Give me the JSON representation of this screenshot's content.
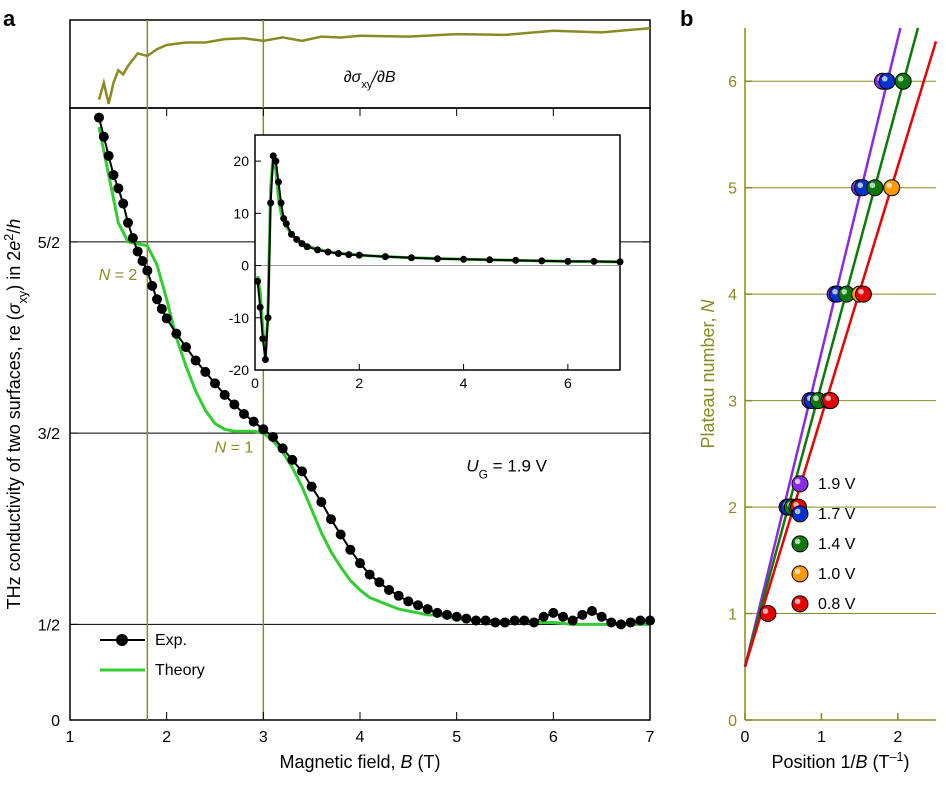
{
  "panelA": {
    "label": "a",
    "axes": {
      "x_label": "Magnetic field, B (T)",
      "y_label": "THz conductivity of two surfaces, re (σ_xy) in 2e²/h",
      "xlim": [
        1,
        7
      ],
      "ylim": [
        0,
        3.2
      ],
      "xticks": [
        1,
        2,
        3,
        4,
        5,
        6,
        7
      ],
      "ytick_positions": [
        0,
        0.5,
        1.5,
        2.5
      ],
      "ytick_labels": [
        "0",
        "1/2",
        "3/2",
        "5/2"
      ],
      "label_fontsize": 18,
      "tick_fontsize": 16,
      "axis_color": "#000000",
      "grid_color": "#000000"
    },
    "hlines": [
      0.5,
      1.5,
      2.5
    ],
    "vlines_olive": [
      1.8,
      3.0
    ],
    "olive_color": "#8a8a24",
    "N_labels": [
      {
        "text": "N = 2",
        "B": 1.8,
        "sigma": 2.3
      },
      {
        "text": "N = 1",
        "B": 3.0,
        "sigma": 1.4
      }
    ],
    "UG_label": {
      "text": "U_G = 1.9 V",
      "B": 5.1,
      "sigma": 1.3
    },
    "legend": {
      "items": [
        {
          "label": "Exp.",
          "color": "#000000",
          "marker": true
        },
        {
          "label": "Theory",
          "color": "#33cc33",
          "marker": false
        }
      ],
      "fontsize": 16
    },
    "exp": {
      "color": "#000000",
      "marker_radius": 5,
      "B": [
        1.3,
        1.35,
        1.4,
        1.45,
        1.5,
        1.55,
        1.6,
        1.65,
        1.7,
        1.75,
        1.8,
        1.85,
        1.9,
        1.95,
        2.0,
        2.1,
        2.2,
        2.3,
        2.4,
        2.5,
        2.6,
        2.7,
        2.8,
        2.9,
        3.0,
        3.1,
        3.2,
        3.3,
        3.4,
        3.5,
        3.6,
        3.7,
        3.8,
        3.9,
        4.0,
        4.1,
        4.2,
        4.3,
        4.4,
        4.5,
        4.6,
        4.7,
        4.8,
        4.9,
        5.0,
        5.1,
        5.2,
        5.3,
        5.4,
        5.5,
        5.6,
        5.7,
        5.8,
        5.9,
        6.0,
        6.1,
        6.2,
        6.3,
        6.4,
        6.5,
        6.6,
        6.7,
        6.8,
        6.9,
        7.0
      ],
      "sigma": [
        3.15,
        3.05,
        2.95,
        2.85,
        2.78,
        2.7,
        2.6,
        2.52,
        2.45,
        2.4,
        2.35,
        2.27,
        2.2,
        2.15,
        2.1,
        2.02,
        1.95,
        1.88,
        1.82,
        1.76,
        1.7,
        1.65,
        1.6,
        1.56,
        1.52,
        1.48,
        1.42,
        1.36,
        1.3,
        1.22,
        1.14,
        1.05,
        0.97,
        0.89,
        0.82,
        0.76,
        0.72,
        0.68,
        0.65,
        0.62,
        0.6,
        0.58,
        0.56,
        0.55,
        0.54,
        0.53,
        0.52,
        0.52,
        0.51,
        0.51,
        0.52,
        0.52,
        0.51,
        0.54,
        0.56,
        0.54,
        0.52,
        0.55,
        0.57,
        0.54,
        0.51,
        0.5,
        0.51,
        0.52,
        0.52
      ]
    },
    "theory": {
      "color": "#33cc33",
      "linewidth": 3,
      "B": [
        1.3,
        1.4,
        1.5,
        1.6,
        1.7,
        1.8,
        1.9,
        2.0,
        2.1,
        2.2,
        2.3,
        2.4,
        2.5,
        2.6,
        2.7,
        2.8,
        2.9,
        3.0,
        3.1,
        3.2,
        3.3,
        3.4,
        3.5,
        3.6,
        3.7,
        3.8,
        3.9,
        4.0,
        4.1,
        4.2,
        4.3,
        4.4,
        4.5,
        4.6,
        4.7,
        4.8,
        4.9,
        5.0,
        5.2,
        5.4,
        5.6,
        5.8,
        6.0,
        6.2,
        6.4,
        6.6,
        6.8,
        7.0
      ],
      "sigma": [
        3.1,
        2.85,
        2.6,
        2.5,
        2.49,
        2.48,
        2.38,
        2.2,
        2.0,
        1.85,
        1.72,
        1.62,
        1.55,
        1.52,
        1.51,
        1.51,
        1.51,
        1.5,
        1.46,
        1.4,
        1.32,
        1.22,
        1.1,
        0.98,
        0.88,
        0.8,
        0.73,
        0.68,
        0.64,
        0.62,
        0.6,
        0.58,
        0.57,
        0.56,
        0.55,
        0.55,
        0.54,
        0.53,
        0.52,
        0.52,
        0.51,
        0.51,
        0.51,
        0.5,
        0.5,
        0.5,
        0.5,
        0.5
      ]
    },
    "deriv_strip": {
      "label": "∂σ_xy/∂B",
      "color": "#8a8a24",
      "linewidth": 2.5,
      "label_fontsize": 16,
      "B": [
        1.3,
        1.35,
        1.4,
        1.45,
        1.5,
        1.55,
        1.6,
        1.7,
        1.8,
        1.9,
        2.0,
        2.2,
        2.4,
        2.6,
        2.8,
        3.0,
        3.2,
        3.4,
        3.6,
        3.8,
        4.0,
        4.5,
        5.0,
        5.5,
        6.0,
        6.5,
        7.0
      ],
      "y": [
        0.1,
        0.3,
        0.05,
        0.3,
        0.45,
        0.4,
        0.5,
        0.65,
        0.62,
        0.7,
        0.75,
        0.78,
        0.78,
        0.82,
        0.83,
        0.8,
        0.84,
        0.8,
        0.85,
        0.84,
        0.86,
        0.85,
        0.88,
        0.87,
        0.92,
        0.9,
        0.95
      ]
    },
    "inset": {
      "xlim": [
        0,
        7
      ],
      "ylim": [
        -20,
        25
      ],
      "xticks": [
        0,
        2,
        4,
        6
      ],
      "yticks": [
        -20,
        -10,
        0,
        10,
        20
      ],
      "tick_fontsize": 14,
      "axis_color": "#000000",
      "exp": {
        "color": "#000000",
        "marker_radius": 3.5,
        "B": [
          0.05,
          0.1,
          0.15,
          0.2,
          0.25,
          0.3,
          0.35,
          0.4,
          0.45,
          0.5,
          0.55,
          0.6,
          0.7,
          0.8,
          0.9,
          1.0,
          1.2,
          1.4,
          1.6,
          1.8,
          2.0,
          2.5,
          3.0,
          3.5,
          4.0,
          4.5,
          5.0,
          5.5,
          6.0,
          6.5,
          7.0
        ],
        "y": [
          -3,
          -8,
          -14,
          -18,
          -10,
          12,
          21,
          20,
          16,
          12,
          9,
          8,
          6,
          5,
          4.2,
          3.6,
          3.0,
          2.6,
          2.3,
          2.1,
          2.0,
          1.7,
          1.5,
          1.3,
          1.2,
          1.1,
          1.0,
          0.9,
          0.8,
          0.8,
          0.7
        ]
      },
      "theory": {
        "color": "#33cc33",
        "linewidth": 3,
        "B": [
          0.05,
          0.1,
          0.15,
          0.2,
          0.25,
          0.3,
          0.35,
          0.4,
          0.45,
          0.5,
          0.6,
          0.7,
          0.8,
          1.0,
          1.2,
          1.5,
          2.0,
          2.5,
          3.0,
          4.0,
          5.0,
          6.0,
          7.0
        ],
        "y": [
          -2,
          -5,
          -12,
          -18,
          -8,
          15,
          21,
          18,
          13,
          10,
          7.5,
          6,
          5,
          3.8,
          3.1,
          2.5,
          2.0,
          1.7,
          1.5,
          1.2,
          1.0,
          0.8,
          0.7
        ]
      }
    }
  },
  "panelB": {
    "label": "b",
    "axes": {
      "x_label": "Position 1/B (T⁻¹)",
      "y_label": "Plateau number, N",
      "xlim": [
        0,
        2.5
      ],
      "ylim": [
        0,
        6.5
      ],
      "xticks": [
        0,
        1,
        2
      ],
      "yticks": [
        0,
        1,
        2,
        3,
        4,
        5,
        6
      ],
      "label_fontsize": 18,
      "tick_fontsize": 16,
      "axis_color": "#8a8a24",
      "grid_color": "#8a8a24",
      "label_color_y": "#8a8a24",
      "label_color_x": "#000000"
    },
    "intercept": 0.5,
    "series": [
      {
        "label": "1.9 V",
        "color": "#8a2be2",
        "slope": 2.95,
        "x": [
          0.55,
          0.85,
          1.18,
          1.5,
          1.8
        ],
        "N": [
          2,
          3,
          4,
          5,
          6
        ]
      },
      {
        "label": "1.7 V",
        "color": "#0033cc",
        "slope": 2.95,
        "x": [
          0.57,
          0.88,
          1.21,
          1.54,
          1.86
        ],
        "N": [
          2,
          3,
          4,
          5,
          6
        ]
      },
      {
        "label": "1.4 V",
        "color": "#0b7a0b",
        "slope": 2.65,
        "x": [
          0.62,
          0.96,
          1.33,
          1.7,
          2.07
        ],
        "N": [
          2,
          3,
          4,
          5,
          6
        ]
      },
      {
        "label": "1.0 V",
        "color": "#ff9900",
        "slope": 2.35,
        "x": [
          0.68,
          1.1,
          1.5,
          1.92
        ],
        "N": [
          2,
          3,
          4,
          5
        ]
      },
      {
        "label": "0.8 V",
        "color": "#e60000",
        "slope": 2.35,
        "x": [
          0.3,
          0.7,
          1.12,
          1.55
        ],
        "N": [
          1,
          2,
          3,
          4
        ]
      }
    ],
    "legend": {
      "fontsize": 16,
      "marker_radius": 8
    }
  },
  "colors": {
    "black": "#000000",
    "olive": "#8a8a24",
    "green": "#33cc33",
    "white": "#ffffff"
  }
}
